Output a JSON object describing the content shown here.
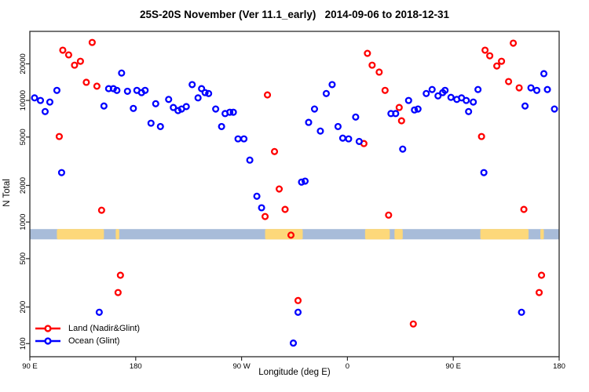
{
  "title": "25S-20S November (Ver 11.1_early)   2014-09-06 to 2018-12-31",
  "axes": {
    "y_label": "N Total",
    "x_label": "Longitude (deg E)"
  },
  "legend": {
    "items": [
      {
        "label": "Land (Nadir&Glint)",
        "color": "#ff0000"
      },
      {
        "label": "Ocean (Glint)",
        "color": "#0000ff"
      }
    ]
  },
  "map_strip": {
    "ocean_color": "#a8bcd9",
    "land_color": "#fdd87a",
    "n_range": [
      720,
      875
    ],
    "land_patches_deg": [
      [
        113,
        153
      ],
      [
        163,
        166
      ],
      [
        290,
        322
      ],
      [
        375,
        396
      ],
      [
        400,
        407
      ],
      [
        473,
        514
      ],
      [
        524,
        527
      ]
    ]
  },
  "chart_data": {
    "type": "scatter",
    "title": "25S-20S November (Ver 11.1_early)   2014-09-06 to 2018-12-31",
    "x_axis": {
      "label": "Longitude (deg E)",
      "lim": [
        90,
        540
      ],
      "ticks": [
        90,
        180,
        270,
        360,
        450,
        540
      ],
      "tick_labels": [
        "90 E",
        "180",
        "90 W",
        "0",
        "90 E",
        "180"
      ]
    },
    "y_axis": {
      "label": "N Total",
      "scale": "log",
      "lim": [
        78,
        37000
      ],
      "ticks": [
        100,
        200,
        500,
        1000,
        2000,
        5000,
        10000,
        20000
      ]
    },
    "grid": false,
    "legend_position": "bottom-left",
    "series": [
      {
        "name": "Land (Nadir&Glint)",
        "color": "#ff0000",
        "marker": "open-circle",
        "points": [
          [
            143,
            30000
          ],
          [
            118,
            25900
          ],
          [
            123,
            23700
          ],
          [
            133,
            21000
          ],
          [
            128,
            19500
          ],
          [
            138,
            14100
          ],
          [
            147,
            13100
          ],
          [
            115,
            5050
          ],
          [
            151,
            1250
          ],
          [
            292,
            11100
          ],
          [
            298,
            3800
          ],
          [
            302,
            1870
          ],
          [
            307,
            1270
          ],
          [
            290,
            1110
          ],
          [
            312,
            780
          ],
          [
            377,
            24400
          ],
          [
            381,
            19500
          ],
          [
            387,
            17100
          ],
          [
            392,
            12100
          ],
          [
            404,
            8750
          ],
          [
            406,
            6800
          ],
          [
            374,
            4420
          ],
          [
            395,
            1140
          ],
          [
            501,
            29600
          ],
          [
            477,
            25900
          ],
          [
            481,
            23300
          ],
          [
            491,
            21000
          ],
          [
            487,
            19200
          ],
          [
            497,
            14300
          ],
          [
            506,
            12700
          ],
          [
            474,
            5050
          ],
          [
            510,
            1270
          ],
          [
            167,
            365
          ],
          [
            165,
            263
          ],
          [
            318,
            226
          ],
          [
            416,
            145
          ],
          [
            525,
            365
          ],
          [
            523,
            263
          ]
        ]
      },
      {
        "name": "Ocean (Glint)",
        "color": "#0000ff",
        "marker": "open-circle",
        "points": [
          [
            168,
            16800
          ],
          [
            113,
            12100
          ],
          [
            157,
            12500
          ],
          [
            161,
            12500
          ],
          [
            164,
            12100
          ],
          [
            173,
            11900
          ],
          [
            181,
            12100
          ],
          [
            185,
            11600
          ],
          [
            188,
            12100
          ],
          [
            94,
            10500
          ],
          [
            99,
            10000
          ],
          [
            107,
            9700
          ],
          [
            103,
            8100
          ],
          [
            153,
            9000
          ],
          [
            178,
            8600
          ],
          [
            197,
            9400
          ],
          [
            193,
            6500
          ],
          [
            201,
            6100
          ],
          [
            117,
            2550
          ],
          [
            228,
            13500
          ],
          [
            236,
            12500
          ],
          [
            239,
            11600
          ],
          [
            242,
            11400
          ],
          [
            233,
            10500
          ],
          [
            208,
            10200
          ],
          [
            212,
            8750
          ],
          [
            216,
            8250
          ],
          [
            219,
            8500
          ],
          [
            223,
            8900
          ],
          [
            248,
            8500
          ],
          [
            256,
            7800
          ],
          [
            260,
            8000
          ],
          [
            263,
            8000
          ],
          [
            253,
            6100
          ],
          [
            267,
            4830
          ],
          [
            272,
            4830
          ],
          [
            277,
            3230
          ],
          [
            283,
            1630
          ],
          [
            287,
            1310
          ],
          [
            321,
            2130
          ],
          [
            324,
            2170
          ],
          [
            347,
            13500
          ],
          [
            342,
            11400
          ],
          [
            332,
            8500
          ],
          [
            327,
            6600
          ],
          [
            337,
            5600
          ],
          [
            352,
            6100
          ],
          [
            367,
            7300
          ],
          [
            356,
            4900
          ],
          [
            361,
            4830
          ],
          [
            370,
            4600
          ],
          [
            397,
            7800
          ],
          [
            401,
            7800
          ],
          [
            412,
            10000
          ],
          [
            417,
            8350
          ],
          [
            420,
            8500
          ],
          [
            407,
            3980
          ],
          [
            427,
            11400
          ],
          [
            432,
            12300
          ],
          [
            437,
            10900
          ],
          [
            441,
            11600
          ],
          [
            443,
            12100
          ],
          [
            448,
            10600
          ],
          [
            453,
            10200
          ],
          [
            457,
            10500
          ],
          [
            461,
            10000
          ],
          [
            467,
            9700
          ],
          [
            463,
            8100
          ],
          [
            471,
            12300
          ],
          [
            476,
            2550
          ],
          [
            511,
            9000
          ],
          [
            516,
            12700
          ],
          [
            521,
            12100
          ],
          [
            527,
            16600
          ],
          [
            530,
            12300
          ],
          [
            536,
            8500
          ],
          [
            149,
            181
          ],
          [
            318,
            181
          ],
          [
            314,
            101
          ],
          [
            508,
            181
          ]
        ]
      }
    ]
  }
}
